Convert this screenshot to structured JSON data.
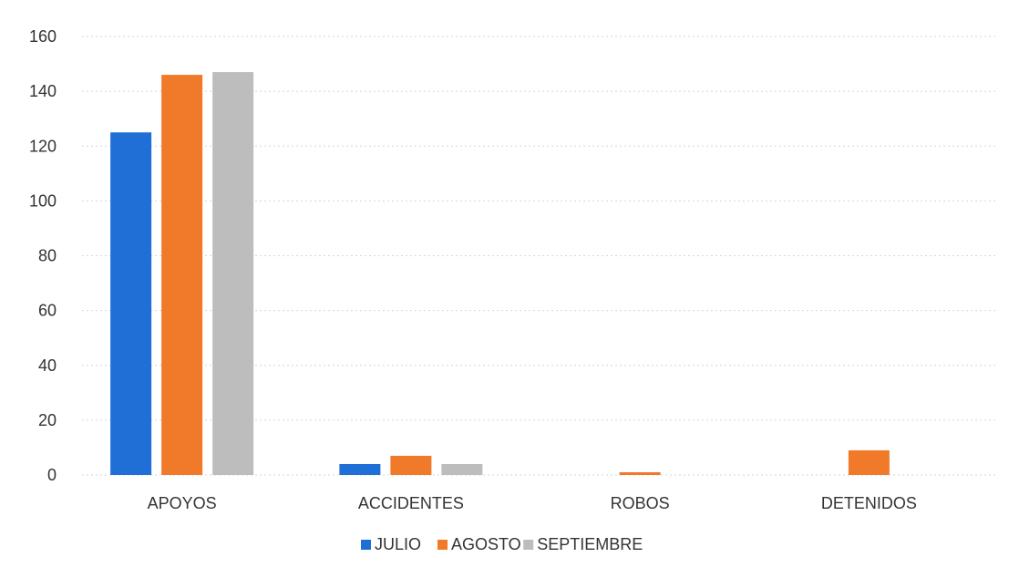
{
  "chart_data": {
    "type": "bar",
    "title": "",
    "xlabel": "",
    "ylabel": "",
    "categories": [
      "APOYOS",
      "ACCIDENTES",
      "ROBOS",
      "DETENIDOS"
    ],
    "series": [
      {
        "name": "JULIO",
        "color": "#1f6fd6",
        "values": [
          125,
          4,
          0,
          0
        ]
      },
      {
        "name": "AGOSTO",
        "color": "#f07a2a",
        "values": [
          146,
          7,
          1,
          9
        ]
      },
      {
        "name": "SEPTIEMBRE",
        "color": "#bdbdbd",
        "values": [
          147,
          4,
          0,
          0
        ]
      }
    ],
    "ylim": [
      0,
      160
    ],
    "yticks": [
      "0",
      "20",
      "40",
      "60",
      "80",
      "100",
      "120",
      "140",
      "160"
    ],
    "grid": true,
    "legend_position": "bottom"
  }
}
